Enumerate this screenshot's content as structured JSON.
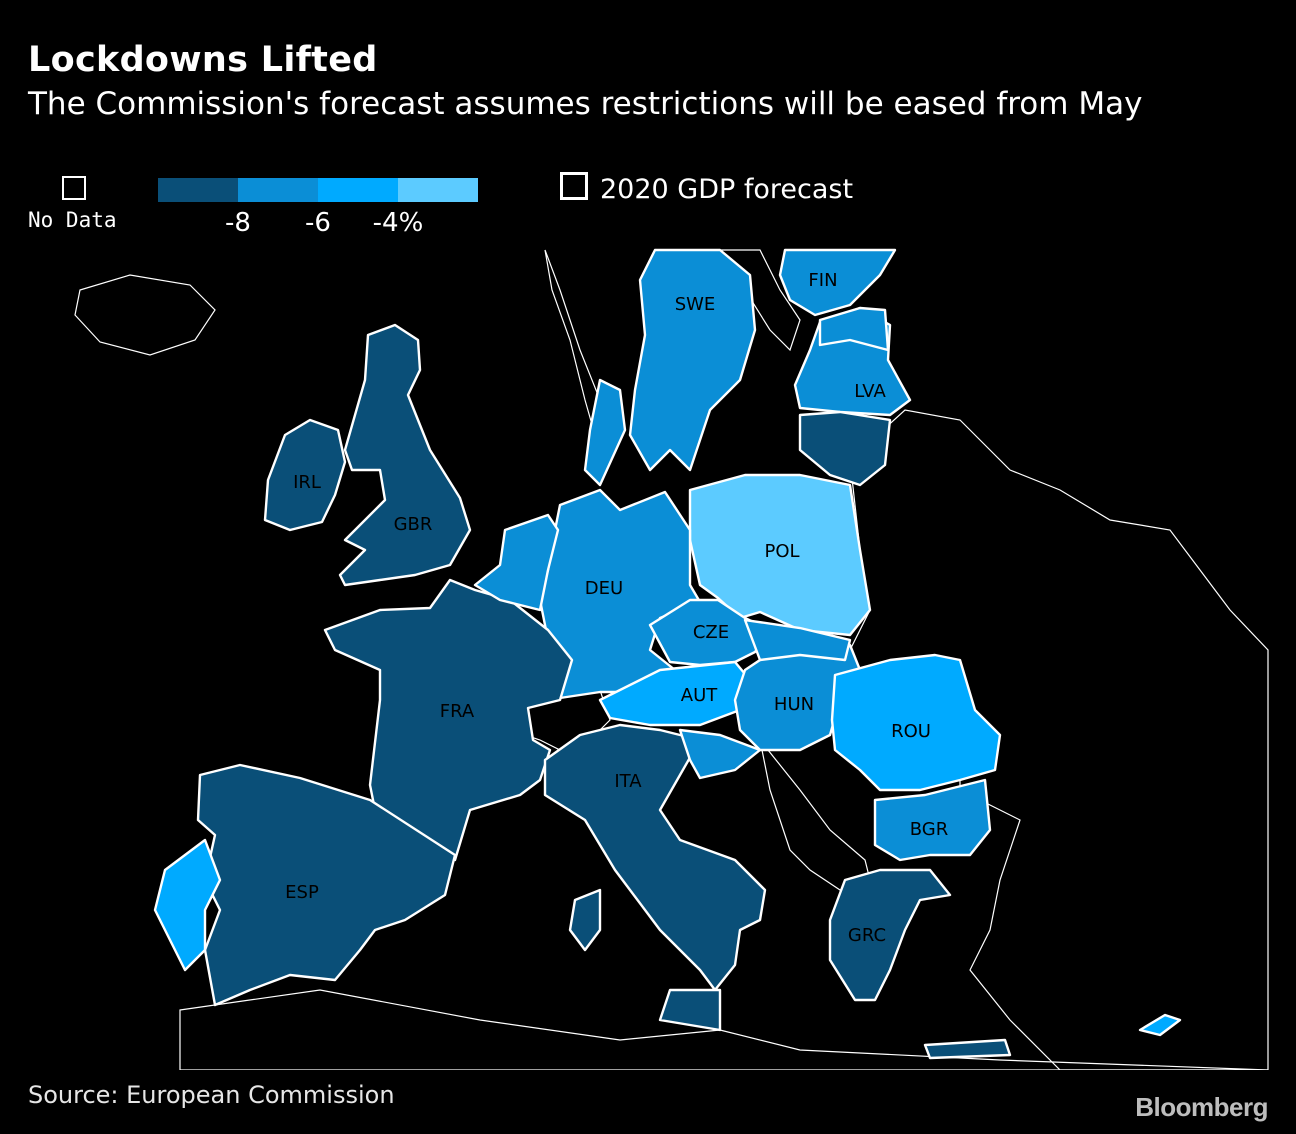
{
  "title": "Lockdowns Lifted",
  "subtitle": "The Commission's forecast assumes restrictions will be eased from May",
  "legend": {
    "no_data_label": "No Data",
    "scale_colors": [
      "#0a4f78",
      "#0b8ed6",
      "#00aaff",
      "#5ccbff"
    ],
    "scale_ticks": [
      "-8",
      "-6",
      "-4%"
    ],
    "series_label": "2020 GDP forecast"
  },
  "countries": [
    {
      "code": "SWE",
      "color": "#0b8ed6"
    },
    {
      "code": "FIN",
      "color": "#0b8ed6"
    },
    {
      "code": "LVA",
      "color": "#0b8ed6"
    },
    {
      "code": "IRL",
      "color": "#0a4f78"
    },
    {
      "code": "GBR",
      "color": "#0a4f78"
    },
    {
      "code": "POL",
      "color": "#5ccbff"
    },
    {
      "code": "DEU",
      "color": "#0b8ed6"
    },
    {
      "code": "CZE",
      "color": "#0b8ed6"
    },
    {
      "code": "FRA",
      "color": "#0a4f78"
    },
    {
      "code": "AUT",
      "color": "#00aaff"
    },
    {
      "code": "HUN",
      "color": "#0b8ed6"
    },
    {
      "code": "ROU",
      "color": "#00aaff"
    },
    {
      "code": "ITA",
      "color": "#0a4f78"
    },
    {
      "code": "BGR",
      "color": "#0b8ed6"
    },
    {
      "code": "ESP",
      "color": "#0a4f78"
    },
    {
      "code": "GRC",
      "color": "#0a4f78"
    }
  ],
  "source": "Source: European Commission",
  "brand": "Bloomberg"
}
